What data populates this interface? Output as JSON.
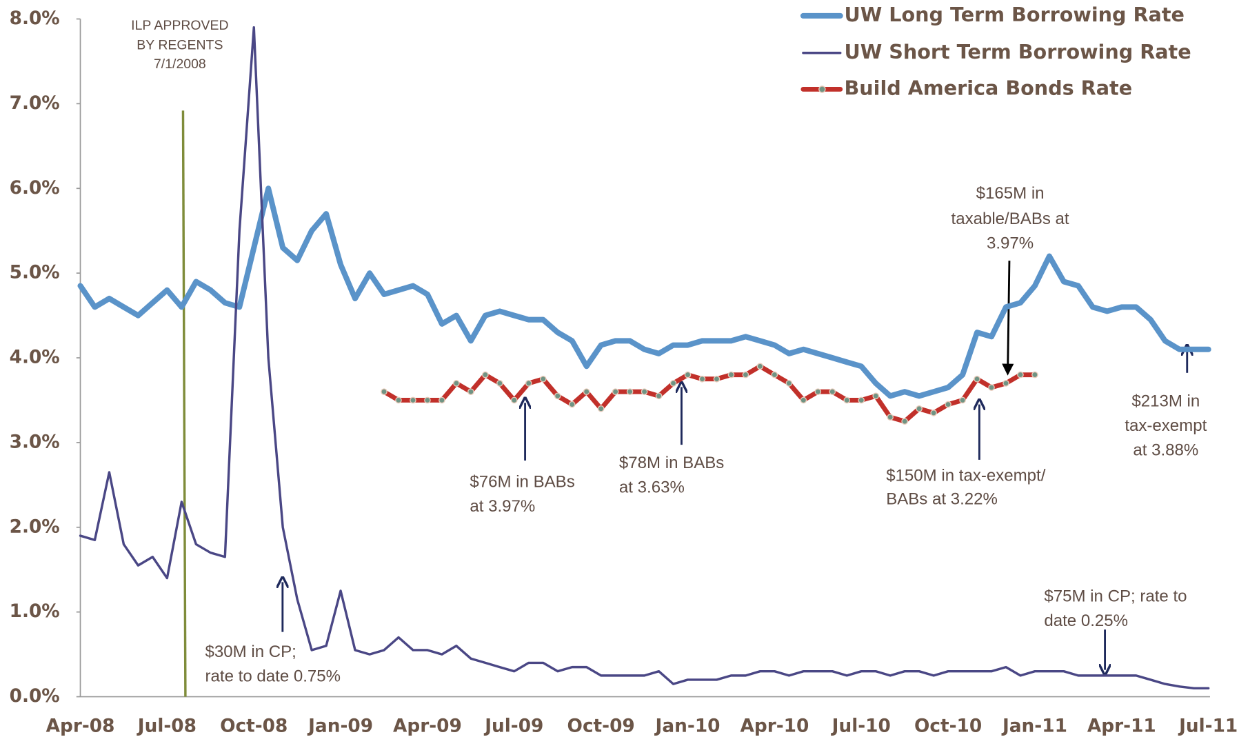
{
  "chart_data": {
    "type": "line",
    "categories": [
      "Apr-08",
      null,
      null,
      null,
      null,
      null,
      "Jul-08",
      null,
      null,
      null,
      null,
      null,
      "Oct-08",
      null,
      null,
      null,
      null,
      null,
      "Jan-09",
      null,
      null,
      null,
      null,
      null,
      "Apr-09",
      null,
      null,
      null,
      null,
      null,
      "Jul-09",
      null,
      null,
      null,
      null,
      null,
      "Oct-09",
      null,
      null,
      null,
      null,
      null,
      "Jan-10",
      null,
      null,
      null,
      null,
      null,
      "Apr-10",
      null,
      null,
      null,
      null,
      null,
      "Jul-10",
      null,
      null,
      null,
      null,
      null,
      "Oct-10",
      null,
      null,
      null,
      null,
      null,
      "Jan-11",
      null,
      null,
      null,
      null,
      null,
      "Apr-11",
      null,
      null,
      null,
      null,
      null,
      "Jul-11"
    ],
    "series": [
      {
        "name": "UW Long Term Borrowing Rate",
        "color": "#5a93c9",
        "values": [
          4.85,
          4.6,
          4.7,
          4.6,
          4.5,
          4.65,
          4.8,
          4.6,
          4.9,
          4.8,
          4.65,
          4.6,
          5.3,
          6.0,
          5.3,
          5.15,
          5.5,
          5.7,
          5.1,
          4.7,
          5.0,
          4.75,
          4.8,
          4.85,
          4.75,
          4.4,
          4.5,
          4.2,
          4.5,
          4.55,
          4.5,
          4.45,
          4.45,
          4.3,
          4.2,
          3.9,
          4.15,
          4.2,
          4.2,
          4.1,
          4.05,
          4.15,
          4.15,
          4.2,
          4.2,
          4.2,
          4.25,
          4.2,
          4.15,
          4.05,
          4.1,
          4.05,
          4.0,
          3.95,
          3.9,
          3.7,
          3.55,
          3.6,
          3.55,
          3.6,
          3.65,
          3.8,
          4.3,
          4.25,
          4.6,
          4.65,
          4.85,
          5.2,
          4.9,
          4.85,
          4.6,
          4.55,
          4.6,
          4.6,
          4.45,
          4.2,
          4.1,
          4.1,
          4.1
        ]
      },
      {
        "name": "UW Short Term Borrowing Rate",
        "color": "#4a4785",
        "values": [
          1.9,
          1.85,
          2.65,
          1.8,
          1.55,
          1.65,
          1.4,
          2.3,
          1.8,
          1.7,
          1.65,
          5.5,
          7.9,
          4.0,
          2.0,
          1.15,
          0.55,
          0.6,
          1.25,
          0.55,
          0.5,
          0.55,
          0.7,
          0.55,
          0.55,
          0.5,
          0.6,
          0.45,
          0.4,
          0.35,
          0.3,
          0.4,
          0.4,
          0.3,
          0.35,
          0.35,
          0.25,
          0.25,
          0.25,
          0.25,
          0.3,
          0.15,
          0.2,
          0.2,
          0.2,
          0.25,
          0.25,
          0.3,
          0.3,
          0.25,
          0.3,
          0.3,
          0.3,
          0.25,
          0.3,
          0.3,
          0.25,
          0.3,
          0.3,
          0.25,
          0.3,
          0.3,
          0.3,
          0.3,
          0.35,
          0.25,
          0.3,
          0.3,
          0.3,
          0.25,
          0.25,
          0.25,
          0.25,
          0.25,
          0.2,
          0.15,
          0.12,
          0.1,
          0.1
        ]
      },
      {
        "name": "Build America Bonds Rate",
        "color": "#c1302a",
        "values": [
          null,
          null,
          null,
          null,
          null,
          null,
          null,
          null,
          null,
          null,
          null,
          null,
          null,
          null,
          null,
          null,
          null,
          null,
          null,
          null,
          null,
          3.6,
          3.5,
          3.5,
          3.5,
          3.5,
          3.7,
          3.6,
          3.8,
          3.7,
          3.5,
          3.7,
          3.75,
          3.55,
          3.45,
          3.6,
          3.4,
          3.6,
          3.6,
          3.6,
          3.55,
          3.7,
          3.8,
          3.75,
          3.75,
          3.8,
          3.8,
          3.9,
          3.8,
          3.7,
          3.5,
          3.6,
          3.6,
          3.5,
          3.5,
          3.55,
          3.3,
          3.25,
          3.4,
          3.35,
          3.45,
          3.5,
          3.75,
          3.65,
          3.7,
          3.8,
          3.8,
          null,
          null,
          null,
          null,
          null,
          null,
          null,
          null,
          null,
          null,
          null,
          null
        ]
      }
    ],
    "ylim": [
      0,
      8
    ],
    "yticks": [
      {
        "value": 0,
        "label": "0.0%"
      },
      {
        "value": 1,
        "label": "1.0%"
      },
      {
        "value": 2,
        "label": "2.0%"
      },
      {
        "value": 3,
        "label": "3.0%"
      },
      {
        "value": 4,
        "label": "4.0%"
      },
      {
        "value": 5,
        "label": "5.0%"
      },
      {
        "value": 6,
        "label": "6.0%"
      },
      {
        "value": 7,
        "label": "7.0%"
      },
      {
        "value": 8,
        "label": "8.0%"
      }
    ],
    "grid": false,
    "legend": "top-right",
    "annotations": [
      {
        "lines": [
          "ILP APPROVED",
          "BY REGENTS",
          "7/1/2008"
        ]
      },
      {
        "lines": [
          "$165M in",
          "taxable/BABs at",
          "3.97%"
        ]
      },
      {
        "lines": [
          "$76M in BABs",
          "at 3.97%"
        ]
      },
      {
        "lines": [
          "$78M in BABs",
          "at 3.63%"
        ]
      },
      {
        "lines": [
          "$150M in tax-exempt/",
          "BABs at 3.22%"
        ]
      },
      {
        "lines": [
          "$213M in",
          "tax-exempt",
          "at 3.88%"
        ]
      },
      {
        "lines": [
          "$30M in CP;",
          "rate to date 0.75%"
        ]
      },
      {
        "lines": [
          "$75M in CP; rate to",
          "date 0.25%"
        ]
      }
    ]
  }
}
